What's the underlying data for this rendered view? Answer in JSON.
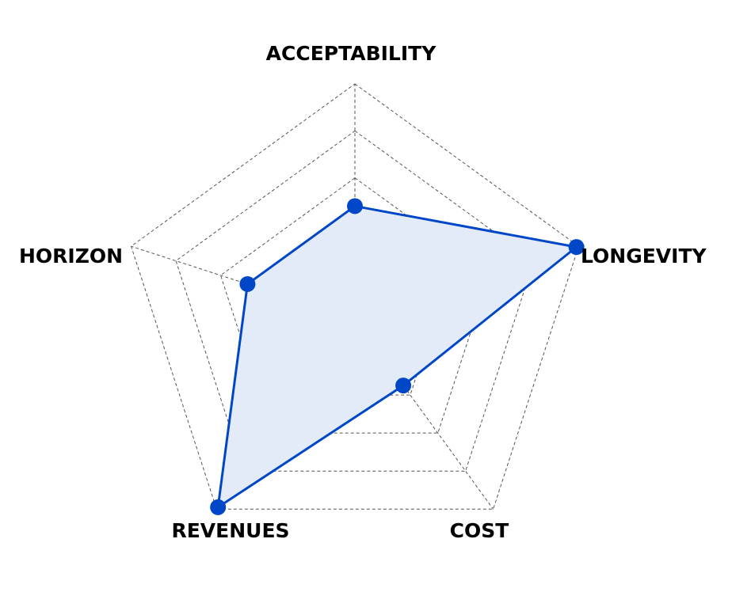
{
  "chart_data": {
    "type": "radar",
    "title": "",
    "axes": [
      "ACCEPTABILITY",
      "LONGEVITY",
      "COST",
      "REVENUES",
      "HORIZON"
    ],
    "rings": 5,
    "range": [
      0,
      5
    ],
    "grid": true,
    "series": [
      {
        "values": [
          2.4,
          4.95,
          1.75,
          4.95,
          2.4
        ],
        "color": "#0047c8",
        "fill": "#e3ebf8"
      }
    ]
  }
}
